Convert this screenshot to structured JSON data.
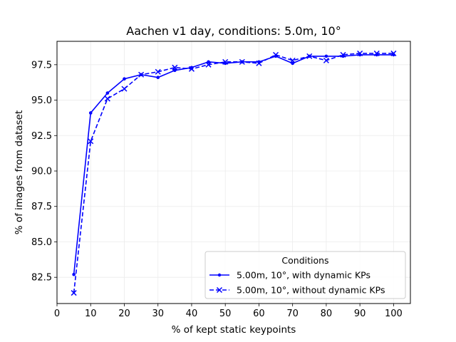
{
  "chart_data": {
    "type": "line",
    "title": "Aachen v1 day, conditions: 5.0m, 10°",
    "xlabel": "% of kept static keypoints",
    "ylabel": "% of images from dataset",
    "xlim": [
      0,
      105
    ],
    "ylim": [
      80.65,
      99.15
    ],
    "xticks": [
      0,
      10,
      20,
      30,
      40,
      50,
      60,
      70,
      80,
      90,
      100
    ],
    "yticks": [
      82.5,
      85.0,
      87.5,
      90.0,
      92.5,
      95.0,
      97.5
    ],
    "ytick_labels": [
      "82.5",
      "85.0",
      "87.5",
      "90.0",
      "92.5",
      "95.0",
      "97.5"
    ],
    "grid": true,
    "legend": {
      "title": "Conditions",
      "placement": "lower-right"
    },
    "x": [
      5,
      10,
      15,
      20,
      25,
      30,
      35,
      40,
      45,
      50,
      55,
      60,
      65,
      70,
      75,
      80,
      85,
      90,
      95,
      100
    ],
    "series": [
      {
        "name": "5.00m, 10°, with dynamic KPs",
        "color": "#0000ff",
        "style": "solid",
        "marker": "dot",
        "values": [
          82.7,
          94.1,
          95.5,
          96.5,
          96.8,
          96.6,
          97.1,
          97.3,
          97.7,
          97.6,
          97.7,
          97.7,
          98.1,
          97.6,
          98.1,
          98.1,
          98.1,
          98.2,
          98.2,
          98.2
        ]
      },
      {
        "name": "5.00m, 10°, without dynamic KPs",
        "color": "#0000ff",
        "style": "dashed",
        "marker": "x",
        "values": [
          81.4,
          92.1,
          95.1,
          95.8,
          96.8,
          97.0,
          97.3,
          97.2,
          97.5,
          97.7,
          97.7,
          97.6,
          98.2,
          97.8,
          98.1,
          97.8,
          98.2,
          98.3,
          98.3,
          98.3
        ]
      }
    ]
  }
}
